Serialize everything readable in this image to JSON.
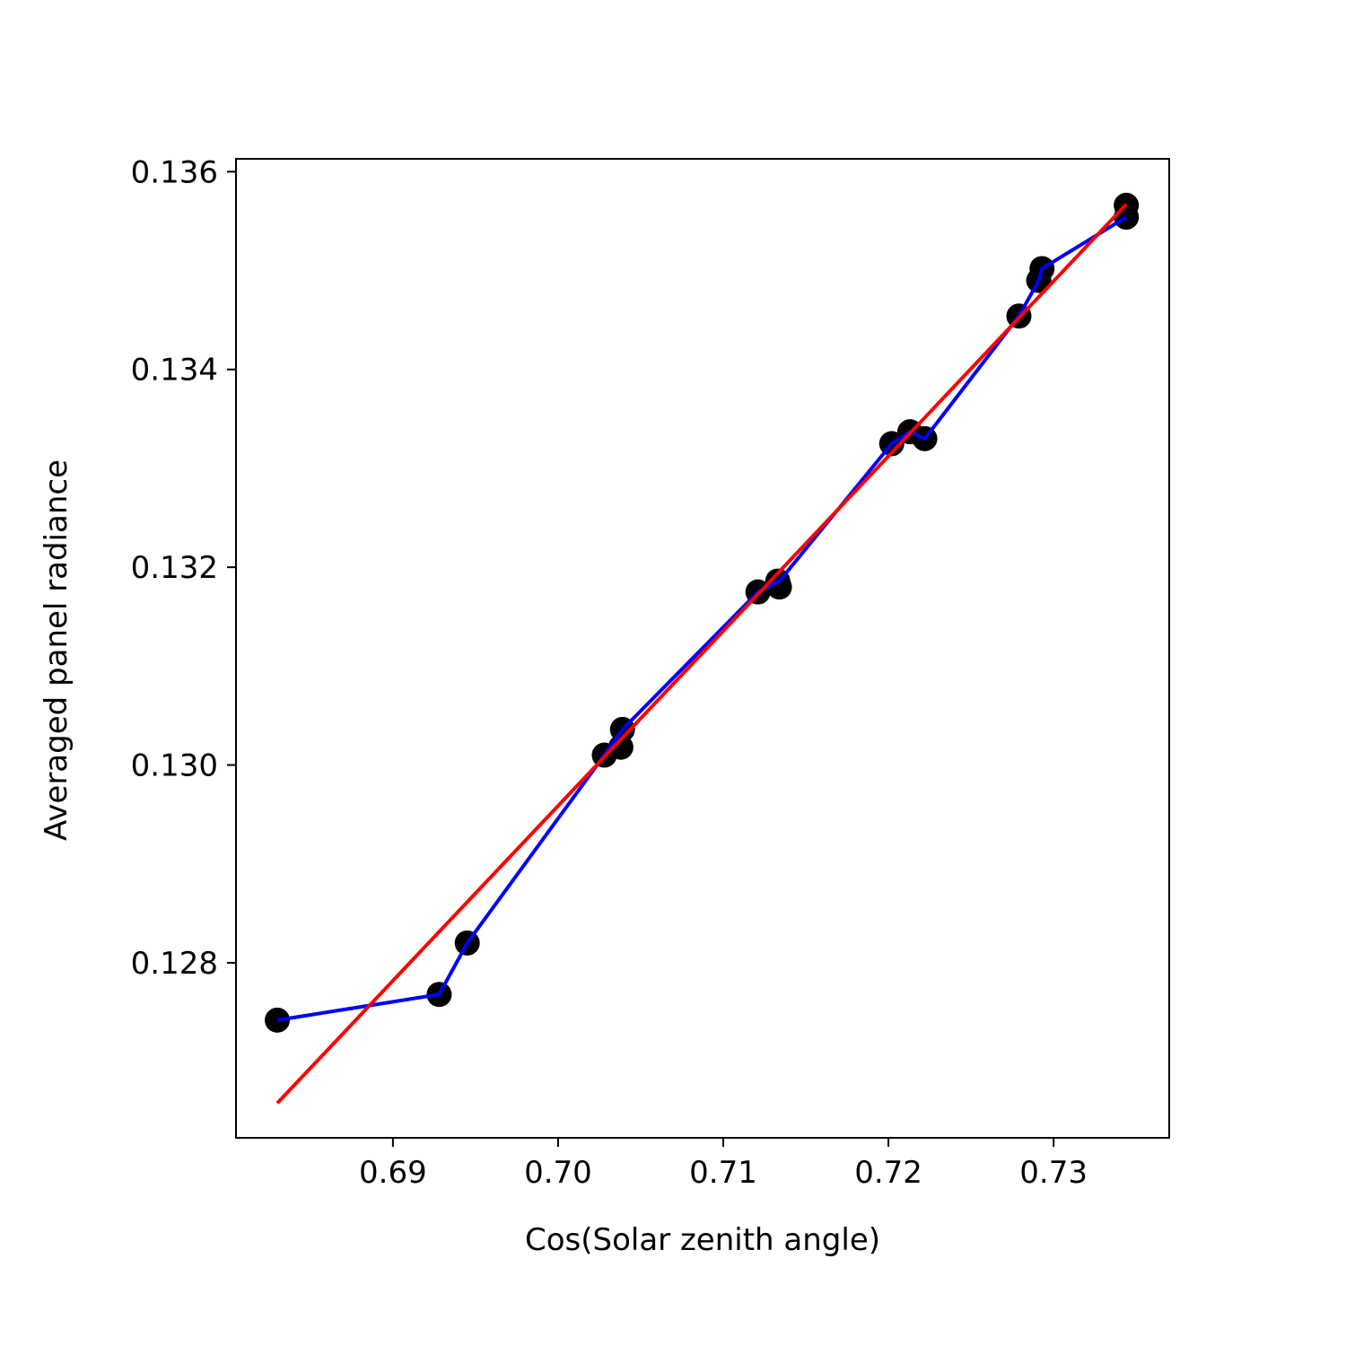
{
  "chart_data": {
    "type": "scatter",
    "title": "",
    "xlabel": "Cos(Solar zenith angle)",
    "ylabel": "Averaged panel radiance",
    "xlim": [
      0.6805,
      0.737
    ],
    "ylim": [
      0.12623,
      0.13613
    ],
    "xticks": [
      0.69,
      0.7,
      0.71,
      0.72,
      0.73
    ],
    "xtick_labels": [
      "0.69",
      "0.70",
      "0.71",
      "0.72",
      "0.73"
    ],
    "yticks": [
      0.128,
      0.13,
      0.132,
      0.134,
      0.136
    ],
    "ytick_labels": [
      "0.128",
      "0.130",
      "0.132",
      "0.134",
      "0.136"
    ],
    "grid": false,
    "series": [
      {
        "kind": "scatter",
        "color": "#000000",
        "x": [
          0.683,
          0.6928,
          0.6945,
          0.7028,
          0.7038,
          0.7039,
          0.7121,
          0.7134,
          0.7133,
          0.7202,
          0.7213,
          0.7222,
          0.7279,
          0.7291,
          0.7293,
          0.7344,
          0.7344
        ],
        "y": [
          0.12742,
          0.12768,
          0.1282,
          0.1301,
          0.13018,
          0.13036,
          0.13175,
          0.1318,
          0.13186,
          0.13325,
          0.13337,
          0.1333,
          0.13454,
          0.1349,
          0.13502,
          0.13554,
          0.13566
        ]
      },
      {
        "kind": "line",
        "color": "#0000ff",
        "x": [
          0.683,
          0.6928,
          0.6945,
          0.7028,
          0.7039,
          0.7121,
          0.7134,
          0.7202,
          0.7213,
          0.7222,
          0.7279,
          0.7291,
          0.7293,
          0.7344
        ],
        "y": [
          0.12742,
          0.12768,
          0.1282,
          0.1301,
          0.13036,
          0.13175,
          0.13186,
          0.13325,
          0.13337,
          0.1333,
          0.13454,
          0.1349,
          0.13502,
          0.13554
        ]
      },
      {
        "kind": "line",
        "color": "#ff0000",
        "x": [
          0.683,
          0.7344
        ],
        "y": [
          0.12658,
          0.13567
        ]
      }
    ]
  }
}
